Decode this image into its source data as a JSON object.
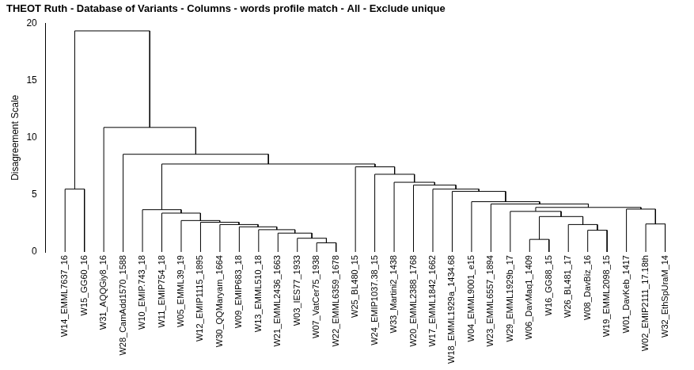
{
  "chart_data": {
    "type": "dendrogram",
    "title": "THEOT Ruth - Database of Variants - Columns - words profile match - All - Exclude unique",
    "y_label": "Disagreement Scale",
    "ylim": [
      0,
      20
    ],
    "yticks": [
      0,
      5,
      10,
      15,
      20
    ],
    "grid": false,
    "color": "#000000",
    "tree": {
      "height": 19.35,
      "children": [
        {
          "height": 5.5,
          "children": [
            "W14_EMML7637_16",
            "W15_GG60_16"
          ]
        },
        {
          "height": 10.9,
          "children": [
            "W31_AQQGiy8_16",
            {
              "height": 8.55,
              "children": [
                "W28_CamAdd1570_1588",
                {
                  "height": 7.7,
                  "children": [
                    {
                      "height": 3.7,
                      "children": [
                        "W10_EMIP.743_18",
                        {
                          "height": 3.4,
                          "children": [
                            "W11_EMIP754_18",
                            {
                              "height": 2.75,
                              "children": [
                                "W05_EMML39_19",
                                {
                                  "height": 2.6,
                                  "children": [
                                    "W12_EMIP1115_1895",
                                    {
                                      "height": 2.4,
                                      "children": [
                                        "W30_QQMaryam_1664",
                                        {
                                          "height": 2.2,
                                          "children": [
                                            "W09_EMIP683_18",
                                            {
                                              "height": 1.95,
                                              "children": [
                                                "W13_EMML510_18",
                                                {
                                                  "height": 1.65,
                                                  "children": [
                                                    "W21_EMML2436_1663",
                                                    {
                                                      "height": 1.2,
                                                      "children": [
                                                        "W03_IES77_1933",
                                                        {
                                                          "height": 0.8,
                                                          "children": [
                                                            "W07_VatCer75_1938",
                                                            "W22_EMML6359_1678"
                                                          ]
                                                        }
                                                      ]
                                                    }
                                                  ]
                                                }
                                              ]
                                            }
                                          ]
                                        }
                                      ]
                                    }
                                  ]
                                }
                              ]
                            }
                          ]
                        }
                      ]
                    },
                    {
                      "height": 7.45,
                      "children": [
                        "W25_BL480_15",
                        {
                          "height": 6.8,
                          "children": [
                            "W24_EMIP1037.38_15",
                            {
                              "height": 6.1,
                              "children": [
                                "W33_Martini2_1438",
                                {
                                  "height": 5.85,
                                  "children": [
                                    "W20_EMML2388_1768",
                                    {
                                      "height": 5.5,
                                      "children": [
                                        "W17_EMML1842_1662",
                                        {
                                          "height": 5.3,
                                          "children": [
                                            "W18_EMML1929a_1434.68",
                                            {
                                              "height": 4.4,
                                              "children": [
                                                "W04_EMML9001_e15",
                                                {
                                                  "height": 4.2,
                                                  "children": [
                                                    "W23_EMML6557_1894",
                                                    {
                                                      "height": 3.9,
                                                      "children": [
                                                        {
                                                          "height": 3.55,
                                                          "children": [
                                                            "W29_EMML1929b_17",
                                                            {
                                                              "height": 3.1,
                                                              "children": [
                                                                {
                                                                  "height": 1.1,
                                                                  "children": [
                                                                    "W06_DavMaq1_1409",
                                                                    "W16_GG88_15"
                                                                  ]
                                                                },
                                                                {
                                                                  "height": 2.4,
                                                                  "children": [
                                                                    "W26_BL481_17",
                                                                    {
                                                                      "height": 1.9,
                                                                      "children": [
                                                                        "W08_DavBiz_16",
                                                                        "W19_EMML2098_15"
                                                                      ]
                                                                    }
                                                                  ]
                                                                }
                                                              ]
                                                            }
                                                          ]
                                                        },
                                                        {
                                                          "height": 3.75,
                                                          "children": [
                                                            "W01_DavKeb_1417",
                                                            {
                                                              "height": 2.45,
                                                              "children": [
                                                                "W02_EMIP2111_17.18th",
                                                                "W32_EthSpUraM_14"
                                                              ]
                                                            }
                                                          ]
                                                        }
                                                      ]
                                                    }
                                                  ]
                                                }
                                              ]
                                            }
                                          ]
                                        }
                                      ]
                                    }
                                  ]
                                }
                              ]
                            }
                          ]
                        }
                      ]
                    }
                  ]
                }
              ]
            }
          ]
        }
      ]
    }
  }
}
